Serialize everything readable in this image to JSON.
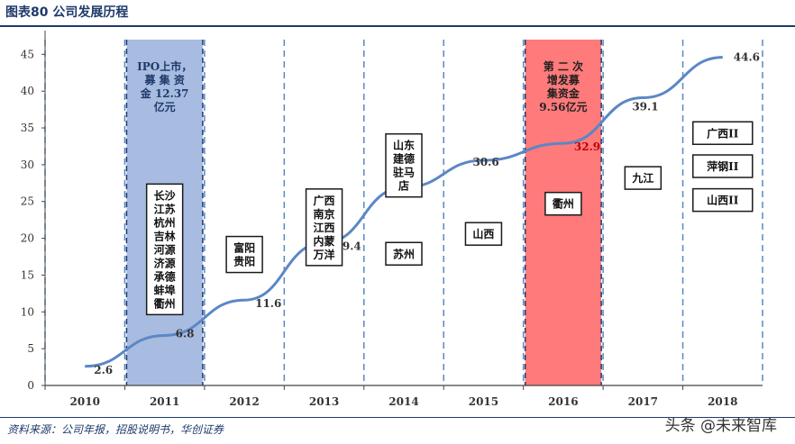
{
  "header": {
    "title": "图表80  公司发展历程"
  },
  "footer": {
    "source": "资料来源：公司年报，招股说明书，华创证券",
    "watermark": "头条 @未来智库"
  },
  "chart_data": {
    "type": "line",
    "title": "",
    "xlabel": "",
    "ylabel": "",
    "x": [
      "2010",
      "2011",
      "2012",
      "2013",
      "2014",
      "2015",
      "2016",
      "2017",
      "2018"
    ],
    "y_ticks": [
      0,
      5,
      10,
      15,
      20,
      25,
      30,
      35,
      40,
      45
    ],
    "ylim": [
      0,
      47
    ],
    "line_color": "#5b87c5",
    "grid": "vertical-dashed",
    "series": [
      {
        "values": [
          2.6,
          6.8,
          11.6,
          19.4,
          26.9,
          30.6,
          32.9,
          39.1,
          44.6
        ],
        "labels": [
          "2.6",
          "6.8",
          "11.6",
          "19.4",
          "26.9",
          "30.6",
          "32.9",
          "39.1",
          "44.6"
        ]
      }
    ],
    "bands": [
      {
        "category_index": 1,
        "color": "#a7bce0",
        "text_color": "#1f3a6b",
        "lines": [
          "IPO上市，",
          "募 集 资",
          "金  12.37",
          "亿元"
        ]
      },
      {
        "category_index": 6,
        "color": "#ff7a7a",
        "text_color": "#222222",
        "lines": [
          "第 二 次",
          "增发募",
          "集资金",
          "9.56亿元"
        ]
      }
    ],
    "annotations": [
      {
        "category_index": 1,
        "y": 18.5,
        "lines": [
          "长沙",
          "江苏",
          "杭州",
          "吉林",
          "河源",
          "济源",
          "承德",
          "蚌埠",
          "衢州"
        ]
      },
      {
        "category_index": 2,
        "y": 17.8,
        "lines": [
          "富阳",
          "贵阳"
        ]
      },
      {
        "category_index": 3,
        "y": 21.5,
        "lines": [
          "广西",
          "南京",
          "江西",
          "内蒙",
          "万洋"
        ]
      },
      {
        "category_index": 4,
        "y": 29.9,
        "lines": [
          "山东",
          "建德",
          "驻马",
          "店"
        ]
      },
      {
        "category_index": 4,
        "y": 17.9,
        "lines": [
          "苏州"
        ]
      },
      {
        "category_index": 5,
        "y": 20.6,
        "lines": [
          "山西"
        ]
      },
      {
        "category_index": 6,
        "y": 24.7,
        "lines": [
          "衢州"
        ]
      },
      {
        "category_index": 7,
        "y": 28.2,
        "lines": [
          "九江"
        ]
      },
      {
        "category_index": 8,
        "y": 34.3,
        "lines": [
          "广西II"
        ]
      },
      {
        "category_index": 8,
        "y": 29.8,
        "lines": [
          "萍钢II"
        ]
      },
      {
        "category_index": 8,
        "y": 25.2,
        "lines": [
          "山西II"
        ]
      }
    ]
  }
}
